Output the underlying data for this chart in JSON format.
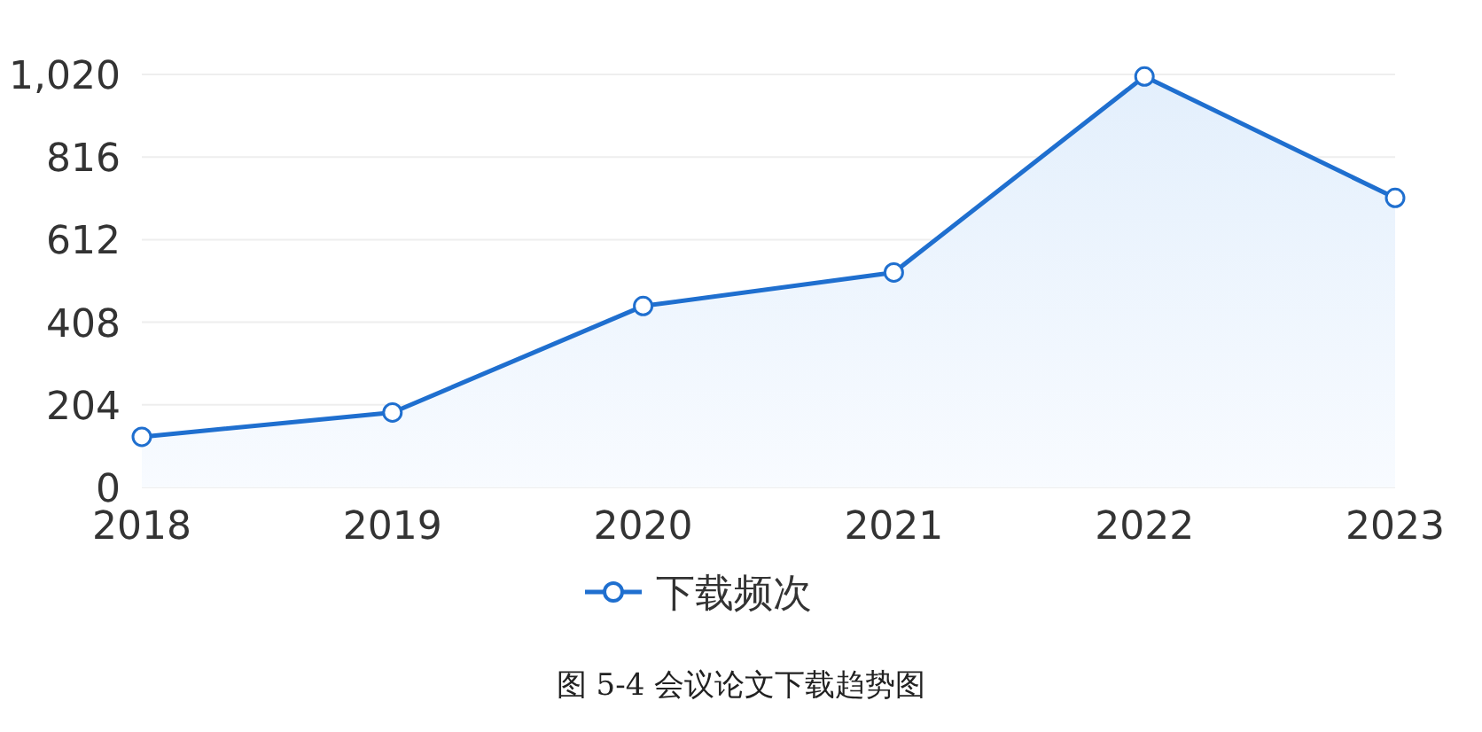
{
  "chart_data": {
    "type": "area",
    "title": "图 5-4  会议论文下载趋势图",
    "categories": [
      "2018",
      "2019",
      "2020",
      "2021",
      "2022",
      "2023"
    ],
    "series": [
      {
        "name": "下载频次",
        "color": "#1f6fcf",
        "values": [
          125,
          185,
          448,
          531,
          1015,
          715
        ]
      }
    ],
    "ylim": [
      0,
      1020
    ],
    "yticks": [
      0,
      {
        "value": 204,
        "label": "204"
      },
      {
        "value": 408,
        "label": "408"
      },
      {
        "value": 612,
        "label": "612"
      },
      {
        "value": 816,
        "label": "816"
      },
      {
        "value": 1020,
        "label": "1,020"
      }
    ],
    "grid": "y",
    "legend": "bottom",
    "marker": "circle",
    "line_style": "solid"
  }
}
